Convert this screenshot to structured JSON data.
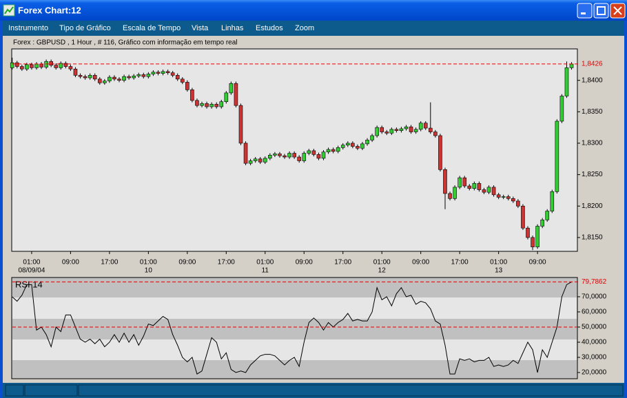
{
  "window": {
    "title": "Forex Chart:12",
    "menu": [
      "Instrumento",
      "Tipo de Gráfico",
      "Escala de Tempo",
      "Vista",
      "Linhas",
      "Estudos",
      "Zoom"
    ]
  },
  "chart_data": [
    {
      "type": "candlestick",
      "title": "Forex : GBPUSD , 1 Hour , # 116, Gráfico com informação em tempo real",
      "up_color": "#33cc33",
      "down_color": "#cc3333",
      "last_line_color": "#e00000",
      "last_label": "1,8426",
      "xlim": [
        -0.1,
        116.2
      ],
      "ylim": [
        1.8128,
        1.845
      ],
      "yticks": [
        {
          "value": 1.815,
          "label": "1,8150"
        },
        {
          "value": 1.82,
          "label": "1,8200"
        },
        {
          "value": 1.825,
          "label": "1,8250"
        },
        {
          "value": 1.83,
          "label": "1,8300"
        },
        {
          "value": 1.835,
          "label": "1,8350"
        },
        {
          "value": 1.84,
          "label": "1,8400"
        }
      ],
      "xticks": [
        {
          "value": 4,
          "label": "01:00"
        },
        {
          "value": 12,
          "label": "09:00"
        },
        {
          "value": 20,
          "label": "17:00"
        },
        {
          "value": 28,
          "label": "01:00"
        },
        {
          "value": 36,
          "label": "09:00"
        },
        {
          "value": 44,
          "label": "17:00"
        },
        {
          "value": 52,
          "label": "01:00"
        },
        {
          "value": 60,
          "label": "09:00"
        },
        {
          "value": 68,
          "label": "17:00"
        },
        {
          "value": 76,
          "label": "01:00"
        },
        {
          "value": 84,
          "label": "09:00"
        },
        {
          "value": 92,
          "label": "17:00"
        },
        {
          "value": 100,
          "label": "01:00"
        },
        {
          "value": 108,
          "label": "09:00"
        }
      ],
      "date_labels": [
        {
          "value": 4,
          "label": "08/09/04"
        },
        {
          "value": 28,
          "label": "10"
        },
        {
          "value": 52,
          "label": "11"
        },
        {
          "value": 76,
          "label": "12"
        },
        {
          "value": 100,
          "label": "13"
        }
      ],
      "open": [
        1.842,
        1.8428,
        1.8422,
        1.8418,
        1.8425,
        1.842,
        1.8426,
        1.8421,
        1.843,
        1.8424,
        1.842,
        1.8427,
        1.8422,
        1.8418,
        1.8408,
        1.8406,
        1.8404,
        1.8408,
        1.8402,
        1.8396,
        1.8399,
        1.8405,
        1.8402,
        1.84,
        1.8406,
        1.8404,
        1.8407,
        1.8409,
        1.8406,
        1.841,
        1.8413,
        1.8411,
        1.8414,
        1.8412,
        1.8408,
        1.8402,
        1.8397,
        1.8385,
        1.8368,
        1.836,
        1.8363,
        1.8358,
        1.8362,
        1.8358,
        1.8366,
        1.838,
        1.8395,
        1.836,
        1.83,
        1.8268,
        1.8272,
        1.8275,
        1.827,
        1.8276,
        1.8281,
        1.8283,
        1.828,
        1.8278,
        1.8284,
        1.8278,
        1.8272,
        1.8284,
        1.8288,
        1.8282,
        1.8276,
        1.8286,
        1.829,
        1.8287,
        1.8293,
        1.8297,
        1.83,
        1.8295,
        1.8292,
        1.8299,
        1.8305,
        1.8312,
        1.8325,
        1.8318,
        1.8316,
        1.8322,
        1.832,
        1.8323,
        1.8326,
        1.8318,
        1.8322,
        1.8332,
        1.8324,
        1.8318,
        1.8312,
        1.8258,
        1.822,
        1.8212,
        1.823,
        1.8245,
        1.8232,
        1.8228,
        1.8236,
        1.8226,
        1.8222,
        1.823,
        1.8218,
        1.8214,
        1.8215,
        1.8212,
        1.8208,
        1.82,
        1.8165,
        1.815,
        1.8135,
        1.8168,
        1.8178,
        1.8192,
        1.8223,
        1.8335,
        1.8375,
        1.842
      ],
      "high": [
        1.8436,
        1.8431,
        1.8425,
        1.8428,
        1.8428,
        1.8429,
        1.8429,
        1.8433,
        1.8433,
        1.8427,
        1.843,
        1.843,
        1.8425,
        1.8421,
        1.8411,
        1.8409,
        1.8411,
        1.8411,
        1.8405,
        1.8402,
        1.8408,
        1.8408,
        1.8405,
        1.8409,
        1.8409,
        1.841,
        1.8412,
        1.8412,
        1.8413,
        1.8416,
        1.8416,
        1.8417,
        1.8417,
        1.8415,
        1.8411,
        1.8405,
        1.84,
        1.8388,
        1.8371,
        1.8366,
        1.8366,
        1.8365,
        1.8365,
        1.8369,
        1.8383,
        1.8398,
        1.8398,
        1.8363,
        1.8303,
        1.8275,
        1.8278,
        1.8278,
        1.8279,
        1.8284,
        1.8286,
        1.8286,
        1.8283,
        1.8287,
        1.8287,
        1.8281,
        1.8287,
        1.8291,
        1.8291,
        1.8285,
        1.8289,
        1.8293,
        1.8293,
        1.8296,
        1.83,
        1.8303,
        1.8303,
        1.8298,
        1.8302,
        1.8308,
        1.8315,
        1.8328,
        1.8328,
        1.8321,
        1.8325,
        1.8325,
        1.8326,
        1.8329,
        1.8329,
        1.8325,
        1.8335,
        1.8335,
        1.8365,
        1.8321,
        1.8315,
        1.8261,
        1.8223,
        1.8233,
        1.8248,
        1.8248,
        1.8235,
        1.8239,
        1.8239,
        1.8229,
        1.8233,
        1.8233,
        1.8221,
        1.8218,
        1.8218,
        1.8215,
        1.8211,
        1.8203,
        1.8168,
        1.8153,
        1.8171,
        1.8181,
        1.8195,
        1.8226,
        1.8338,
        1.8378,
        1.843,
        1.8429
      ],
      "low": [
        1.8417,
        1.8419,
        1.8415,
        1.8415,
        1.8417,
        1.8417,
        1.8418,
        1.8418,
        1.8421,
        1.8417,
        1.8417,
        1.8419,
        1.8415,
        1.8405,
        1.8403,
        1.8401,
        1.8401,
        1.8399,
        1.8393,
        1.8393,
        1.8396,
        1.8399,
        1.8397,
        1.8397,
        1.8401,
        1.8401,
        1.8404,
        1.8403,
        1.8403,
        1.8407,
        1.8408,
        1.8408,
        1.8409,
        1.8405,
        1.8399,
        1.8394,
        1.8382,
        1.8365,
        1.8357,
        1.8357,
        1.8355,
        1.8355,
        1.8355,
        1.8355,
        1.8363,
        1.8377,
        1.8357,
        1.8297,
        1.8265,
        1.8265,
        1.8269,
        1.8267,
        1.8267,
        1.8273,
        1.8278,
        1.8277,
        1.8275,
        1.8275,
        1.8275,
        1.8269,
        1.8269,
        1.8281,
        1.8279,
        1.8273,
        1.8273,
        1.8283,
        1.8284,
        1.8284,
        1.829,
        1.8294,
        1.8292,
        1.8289,
        1.8289,
        1.8296,
        1.8302,
        1.8309,
        1.8315,
        1.8313,
        1.8313,
        1.8317,
        1.8317,
        1.832,
        1.8315,
        1.8315,
        1.8319,
        1.8321,
        1.8315,
        1.8309,
        1.8255,
        1.8195,
        1.8209,
        1.8209,
        1.8227,
        1.8229,
        1.8225,
        1.8225,
        1.8223,
        1.8219,
        1.8219,
        1.8215,
        1.8211,
        1.8211,
        1.8209,
        1.8205,
        1.8197,
        1.8162,
        1.8147,
        1.813,
        1.8132,
        1.8165,
        1.8175,
        1.8189,
        1.822,
        1.8332,
        1.8372,
        1.8417
      ],
      "close": [
        1.8428,
        1.8422,
        1.8418,
        1.8425,
        1.842,
        1.8426,
        1.8421,
        1.843,
        1.8424,
        1.842,
        1.8427,
        1.8422,
        1.8418,
        1.8408,
        1.8406,
        1.8404,
        1.8408,
        1.8402,
        1.8396,
        1.8399,
        1.8405,
        1.8402,
        1.84,
        1.8406,
        1.8404,
        1.8407,
        1.8409,
        1.8406,
        1.841,
        1.8413,
        1.8411,
        1.8414,
        1.8412,
        1.8408,
        1.8402,
        1.8397,
        1.8385,
        1.8368,
        1.836,
        1.8363,
        1.8358,
        1.8362,
        1.8358,
        1.8366,
        1.838,
        1.8395,
        1.836,
        1.83,
        1.8268,
        1.8272,
        1.8275,
        1.827,
        1.8276,
        1.8281,
        1.8283,
        1.828,
        1.8278,
        1.8284,
        1.8278,
        1.8272,
        1.8284,
        1.8288,
        1.8282,
        1.8276,
        1.8286,
        1.829,
        1.8287,
        1.8293,
        1.8297,
        1.83,
        1.8295,
        1.8292,
        1.8299,
        1.8305,
        1.8312,
        1.8325,
        1.8318,
        1.8316,
        1.8322,
        1.832,
        1.8323,
        1.8326,
        1.8318,
        1.8322,
        1.8332,
        1.8324,
        1.8318,
        1.8312,
        1.8258,
        1.822,
        1.8212,
        1.823,
        1.8245,
        1.8232,
        1.8228,
        1.8236,
        1.8226,
        1.8222,
        1.823,
        1.8218,
        1.8214,
        1.8215,
        1.8212,
        1.8208,
        1.82,
        1.8165,
        1.815,
        1.8135,
        1.8168,
        1.8178,
        1.8192,
        1.8223,
        1.8335,
        1.8375,
        1.842,
        1.8426
      ]
    },
    {
      "type": "line",
      "title": "RSI 14",
      "color": "#000000",
      "last_line_color": "#e00000",
      "last_label": "79,7862",
      "reference_line": 50,
      "xlim": [
        -0.1,
        116.2
      ],
      "ylim": [
        15.9,
        82.7
      ],
      "yticks": [
        {
          "value": 20,
          "label": "20,0000"
        },
        {
          "value": 30,
          "label": "30,0000"
        },
        {
          "value": 40,
          "label": "40,0000"
        },
        {
          "value": 50,
          "label": "50,0000"
        },
        {
          "value": 60,
          "label": "60,0000"
        },
        {
          "value": 70,
          "label": "70,0000"
        }
      ],
      "values": [
        70,
        67,
        71,
        78,
        78,
        48,
        50,
        45,
        37,
        50,
        47,
        58,
        58,
        50,
        42,
        40,
        42,
        39,
        42,
        37,
        40,
        45,
        40,
        46,
        40,
        45,
        38,
        44,
        52,
        51,
        54,
        57,
        55,
        45,
        38,
        30,
        27,
        30,
        19,
        21,
        32,
        43,
        40,
        29,
        33,
        22,
        20,
        21,
        20,
        25,
        28,
        31,
        32,
        32,
        31,
        28,
        25,
        28,
        30,
        24,
        40,
        53,
        56,
        53,
        48,
        53,
        50,
        53,
        55,
        59,
        54,
        55,
        54,
        54,
        60,
        76,
        68,
        70,
        64,
        72,
        76,
        70,
        71,
        65,
        67,
        66,
        62,
        54,
        52,
        38,
        19,
        19,
        29,
        28,
        29,
        27,
        28,
        28,
        30,
        24,
        25,
        24,
        25,
        28,
        26,
        33,
        40,
        35,
        20,
        35,
        30,
        40,
        50,
        70,
        78,
        79.7862
      ]
    }
  ]
}
